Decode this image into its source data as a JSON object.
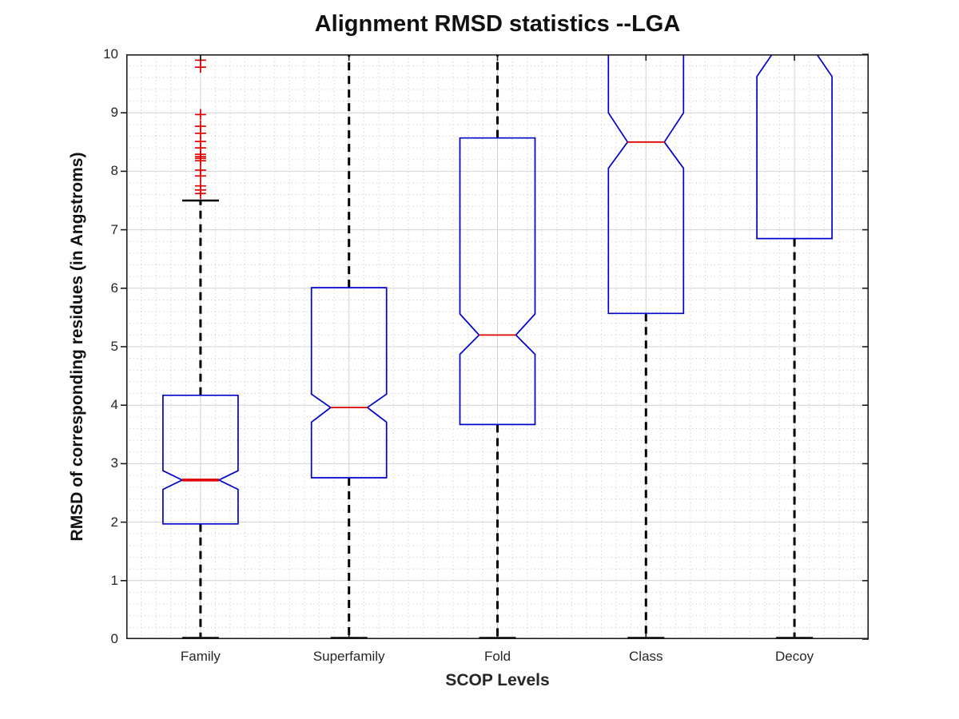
{
  "chart_data": {
    "type": "boxplot",
    "title": "Alignment RMSD statistics --LGA",
    "xlabel": "SCOP Levels",
    "ylabel": "RMSD of corresponding residues (in Angstroms)",
    "ylim": [
      0,
      10
    ],
    "yticks": [
      0,
      1,
      2,
      3,
      4,
      5,
      6,
      7,
      8,
      9,
      10
    ],
    "categories": [
      "Family",
      "Superfamily",
      "Fold",
      "Class",
      "Decoy"
    ],
    "grid": {
      "major": true,
      "minor": true,
      "minor_x_step": 0.1,
      "minor_y_step": 0.2
    },
    "colors": {
      "box": "#0000cd",
      "median": "#e00000",
      "whisker": "#000000",
      "cap": "#000000",
      "outlier": "#e00000",
      "grid_major": "#d2d2d2",
      "grid_minor": "#b8b8b8",
      "axis": "#1a1a1a",
      "tick_label": "#262626",
      "background": "#ffffff"
    },
    "boxes": [
      {
        "label": "Family",
        "q1": 1.97,
        "median": 2.72,
        "q3": 4.17,
        "notch_low": 2.56,
        "notch_high": 2.88,
        "whisker_low": 0.02,
        "whisker_high": 7.5,
        "whisker_high_capped": true,
        "whisker_low_capped": true,
        "median_bold": true,
        "outliers": [
          9.9,
          9.78,
          8.97,
          8.77,
          8.65,
          8.51,
          8.4,
          8.29,
          8.25,
          8.22,
          8.18,
          8.02,
          7.92,
          7.75,
          7.68,
          7.62
        ]
      },
      {
        "label": "Superfamily",
        "q1": 2.76,
        "median": 3.96,
        "q3": 6.01,
        "notch_low": 3.71,
        "notch_high": 4.19,
        "whisker_low": 0.02,
        "whisker_high": 10.5,
        "whisker_high_capped": false,
        "whisker_low_capped": true,
        "median_bold": false,
        "outliers": []
      },
      {
        "label": "Fold",
        "q1": 3.67,
        "median": 5.2,
        "q3": 8.57,
        "notch_low": 4.87,
        "notch_high": 5.56,
        "whisker_low": 0.02,
        "whisker_high": 10.5,
        "whisker_high_capped": false,
        "whisker_low_capped": true,
        "median_bold": false,
        "outliers": []
      },
      {
        "label": "Class",
        "q1": 5.57,
        "median": 8.5,
        "q3": 10.4,
        "notch_low": 8.05,
        "notch_high": 9.0,
        "whisker_low": 0.02,
        "whisker_high": null,
        "whisker_high_capped": false,
        "whisker_low_capped": true,
        "median_bold": false,
        "outliers": []
      },
      {
        "label": "Decoy",
        "q1": 6.85,
        "median": 10.1,
        "q3": 10.7,
        "notch_low": 9.62,
        "notch_high": 10.5,
        "whisker_low": 0.02,
        "whisker_high": null,
        "whisker_high_capped": false,
        "whisker_low_capped": true,
        "median_bold": false,
        "outliers": []
      }
    ]
  }
}
